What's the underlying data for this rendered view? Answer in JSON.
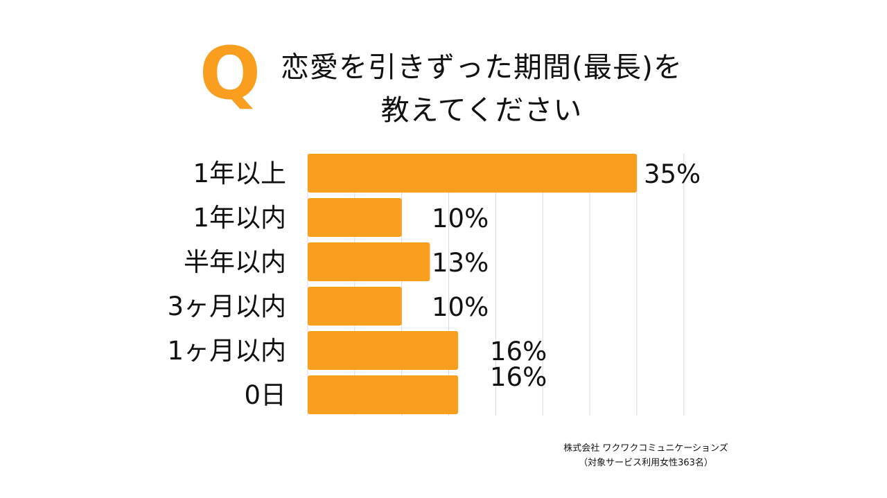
{
  "title": {
    "line1": "恋愛を引きずった期間(最長)を",
    "line2": "教えてください"
  },
  "logo": {
    "letter": "Q",
    "color": "#F99E1F"
  },
  "colors": {
    "bar": "#F99E1F",
    "grid": "#D9D9D9",
    "text": "#111111"
  },
  "chart_data": {
    "type": "bar",
    "orientation": "horizontal",
    "categories": [
      "1年以上",
      "1年以内",
      "半年以内",
      "3ヶ月以内",
      "1ヶ月以内",
      "0日"
    ],
    "values": [
      35,
      10,
      13,
      10,
      16,
      16
    ],
    "value_labels": [
      "35%",
      "10%",
      "13%",
      "10%",
      "16%",
      "16%"
    ],
    "unit": "%",
    "xlim": [
      0,
      40
    ],
    "grid": true
  },
  "footer": {
    "line1": "株式会社 ワクワクコミュニケーションズ",
    "line2": "（対象サービス利用女性363名）"
  }
}
